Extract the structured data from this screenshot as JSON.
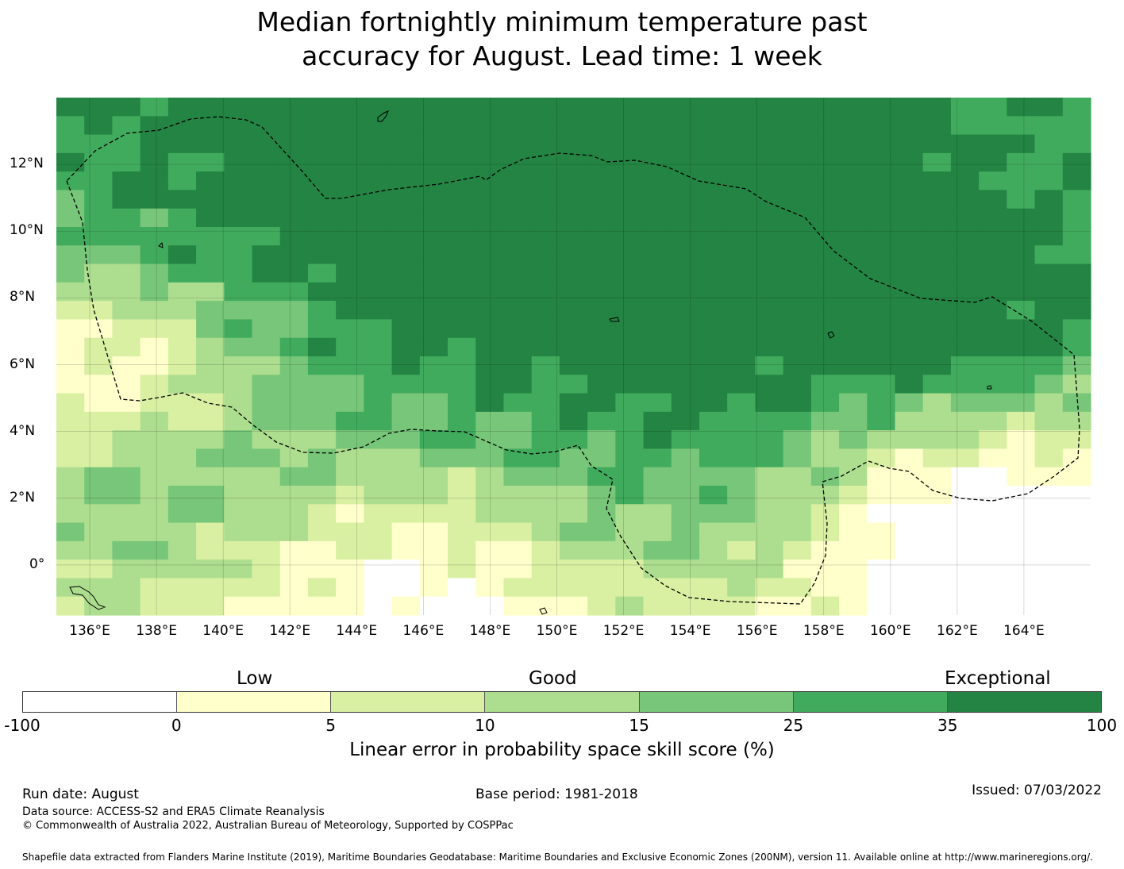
{
  "title": {
    "line1": "Median fortnightly minimum temperature past",
    "line2": "accuracy for August. Lead time: 1 week"
  },
  "map": {
    "lon_labels": [
      "136°E",
      "138°E",
      "140°E",
      "142°E",
      "144°E",
      "146°E",
      "148°E",
      "150°E",
      "152°E",
      "154°E",
      "156°E",
      "158°E",
      "160°E",
      "162°E",
      "164°E"
    ],
    "lat_labels": [
      "12°N",
      "10°N",
      "8°N",
      "6°N",
      "4°N",
      "2°N",
      "0°"
    ],
    "lon_range": [
      135,
      166
    ],
    "lat_range": [
      -1.5,
      14
    ],
    "grid": true,
    "boundary": "dashed EEZ outline"
  },
  "colorbar": {
    "category_labels": [
      "Low",
      "Good",
      "Exceptional"
    ],
    "ticks": [
      "-100",
      "0",
      "5",
      "10",
      "15",
      "25",
      "35",
      "100"
    ],
    "colors": [
      "#ffffff",
      "#ffffcc",
      "#d9f0a3",
      "#addd8e",
      "#78c679",
      "#41ab5d",
      "#238443"
    ],
    "label": "Linear error in probability space skill score (%)"
  },
  "footer": {
    "run_date": "Run date: August",
    "base_period": "Base period: 1981-2018",
    "issued": "Issued: 07/03/2022",
    "data_source": "Data source: ACCESS-S2 and ERA5 Climate Reanalysis",
    "copyright": "© Commonwealth of Australia 2022, Australian Bureau of Meteorology, Supported by COSPPac",
    "shapefile": "Shapefile data extracted from Flanders Marine Institute (2019), Maritime Boundaries Geodatabase: Maritime Boundaries and Exclusive Economic Zones (200NM), version 11. Available online at http://www.marineregions.org/."
  }
}
